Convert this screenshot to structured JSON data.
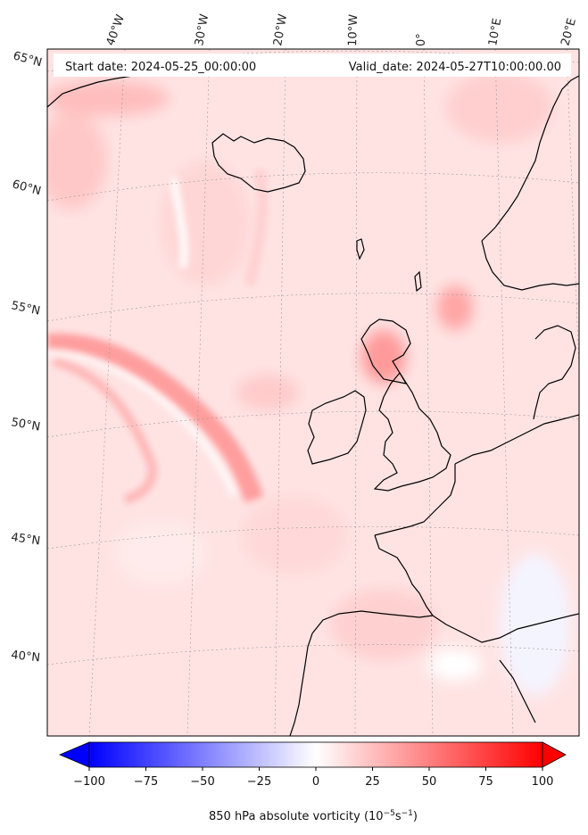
{
  "header": {
    "start_date": "Start date: 2024-05-25_00:00:00",
    "valid_date": "Valid_date: 2024-05-27T10:00:00.00"
  },
  "lon_labels": [
    "40°W",
    "30°W",
    "20°W",
    "10°W",
    "0°",
    "10°E",
    "20°E"
  ],
  "lat_labels": [
    "65°N",
    "60°N",
    "55°N",
    "50°N",
    "45°N",
    "40°N"
  ],
  "colorbar": {
    "min": -100,
    "max": 100,
    "ticks": [
      "−100",
      "−75",
      "−50",
      "−25",
      "0",
      "25",
      "50",
      "75",
      "100"
    ],
    "label_main": "850 hPa absolute vorticity (10",
    "label_exp1": "−5",
    "label_mid": "s",
    "label_exp2": "−1",
    "label_end": ")",
    "color_low": "#0000ff",
    "color_mid": "#ffffff",
    "color_high": "#ff0000",
    "extend": "both"
  },
  "colors": {
    "background_field": "#ffe3e3",
    "coastline": "#000000",
    "gridline": "#999999"
  }
}
